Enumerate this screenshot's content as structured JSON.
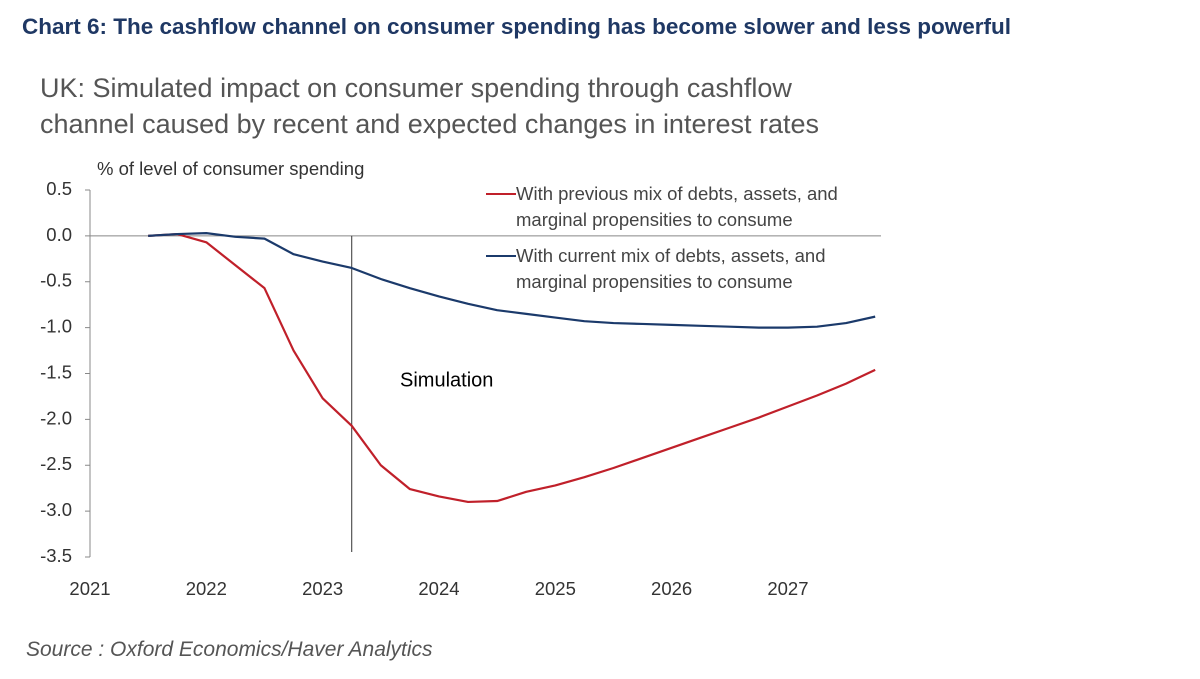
{
  "chart_data": {
    "type": "line",
    "title": "Chart 6: The cashflow channel on consumer spending has become slower and less powerful",
    "subtitle": "UK: Simulated impact on consumer spending through cashflow channel caused by recent and expected changes in interest rates",
    "y_label": "% of level of consumer spending",
    "source": "Source : Oxford Economics/Haver Analytics",
    "x": [
      2021.5,
      2021.75,
      2022,
      2022.25,
      2022.5,
      2022.75,
      2023,
      2023.25,
      2023.5,
      2023.75,
      2024,
      2024.25,
      2024.5,
      2024.75,
      2025,
      2025.25,
      2025.5,
      2025.75,
      2026,
      2026.25,
      2026.5,
      2026.75,
      2027,
      2027.25,
      2027.5,
      2027.75
    ],
    "series": [
      {
        "name": "With previous mix of debts, assets, and marginal propensities to consume",
        "color": "#c0202a",
        "values": [
          0.0,
          0.02,
          -0.07,
          -0.32,
          -0.57,
          -1.25,
          -1.77,
          -2.07,
          -2.5,
          -2.76,
          -2.84,
          -2.9,
          -2.89,
          -2.79,
          -2.72,
          -2.63,
          -2.53,
          -2.42,
          -2.31,
          -2.2,
          -2.09,
          -1.98,
          -1.86,
          -1.74,
          -1.61,
          -1.46
        ]
      },
      {
        "name": "With current mix of debts, assets, and marginal propensities to consume",
        "color": "#1b3a6b",
        "values": [
          0.0,
          0.02,
          0.03,
          -0.01,
          -0.03,
          -0.2,
          -0.28,
          -0.35,
          -0.47,
          -0.57,
          -0.66,
          -0.74,
          -0.81,
          -0.85,
          -0.89,
          -0.93,
          -0.95,
          -0.96,
          -0.97,
          -0.98,
          -0.99,
          -1.0,
          -1.0,
          -0.99,
          -0.95,
          -0.88
        ]
      }
    ],
    "xlim": [
      2021,
      2027.8
    ],
    "xticks": [
      2021,
      2022,
      2023,
      2024,
      2025,
      2026,
      2027
    ],
    "ylim": [
      -3.5,
      0.5
    ],
    "yticks": [
      {
        "value": 0.5,
        "label": "0.5"
      },
      {
        "value": 0.0,
        "label": "0.0"
      },
      {
        "value": -0.5,
        "label": "-0.5"
      },
      {
        "value": -1.0,
        "label": "-1.0"
      },
      {
        "value": -1.5,
        "label": "-1.5"
      },
      {
        "value": -2.0,
        "label": "-2.0"
      },
      {
        "value": -2.5,
        "label": "-2.5"
      },
      {
        "value": -3.0,
        "label": "-3.0"
      },
      {
        "value": -3.5,
        "label": "-3.5"
      }
    ],
    "annotation": {
      "text": "Simulation",
      "x": 2023.25
    }
  }
}
